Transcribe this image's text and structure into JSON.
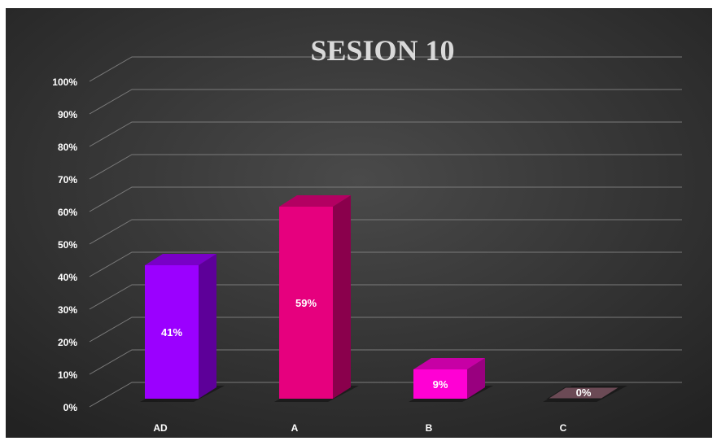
{
  "chart_data": {
    "type": "bar",
    "title": "SESION 10",
    "categories": [
      "AD",
      "A",
      "B",
      "C"
    ],
    "values": [
      41,
      59,
      9,
      0
    ],
    "data_labels": [
      "41%",
      "59%",
      "9%",
      "0%"
    ],
    "y_ticks": [
      "0%",
      "10%",
      "20%",
      "30%",
      "40%",
      "50%",
      "60%",
      "70%",
      "80%",
      "90%",
      "100%"
    ],
    "ylim": [
      0,
      100
    ],
    "grid": true,
    "style": "3d-column",
    "colors": [
      "#9b00ff",
      "#e6007e",
      "#ff00d4",
      "#6b4a55"
    ],
    "background": "#2e2e2e"
  }
}
